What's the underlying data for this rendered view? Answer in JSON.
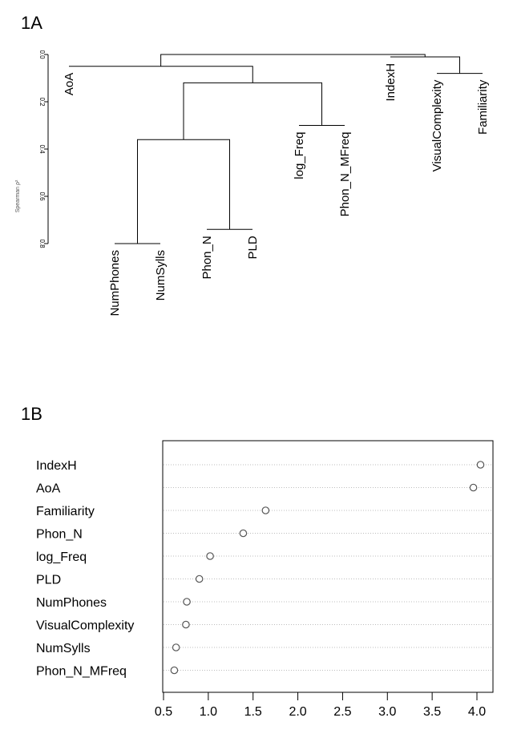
{
  "chart_data": [
    {
      "type": "dendrogram",
      "panel_label": "1A",
      "ylabel": "Spearman ρ²",
      "ylim": [
        0,
        0.8
      ],
      "yticks": [
        "0.0",
        "0.2",
        "0.4",
        "0.6",
        "0.8"
      ],
      "leaves": [
        {
          "label": "AoA",
          "height": 0.05
        },
        {
          "label": "NumPhones",
          "height": 0.8
        },
        {
          "label": "NumSylls",
          "height": 0.8
        },
        {
          "label": "Phon_N",
          "height": 0.74
        },
        {
          "label": "PLD",
          "height": 0.74
        },
        {
          "label": "log_Freq",
          "height": 0.3
        },
        {
          "label": "Phon_N_MFreq",
          "height": 0.3
        },
        {
          "label": "IndexH",
          "height": 0.01
        },
        {
          "label": "VisualComplexity",
          "height": 0.08
        },
        {
          "label": "Familiarity",
          "height": 0.08
        }
      ],
      "merges": [
        {
          "left": "NumPhones",
          "right": "NumSylls",
          "height": 0.8
        },
        {
          "left": "Phon_N",
          "right": "PLD",
          "height": 0.74
        },
        {
          "left": "{NumPhones,NumSylls}",
          "right": "{Phon_N,PLD}",
          "height": 0.36
        },
        {
          "left": "log_Freq",
          "right": "Phon_N_MFreq",
          "height": 0.3
        },
        {
          "left": "{NumPhones,NumSylls,Phon_N,PLD}",
          "right": "{log_Freq,Phon_N_MFreq}",
          "height": 0.12
        },
        {
          "left": "AoA",
          "right": "{NumPhones,...,Phon_N_MFreq}",
          "height": 0.05
        },
        {
          "left": "VisualComplexity",
          "right": "Familiarity",
          "height": 0.08
        },
        {
          "left": "IndexH",
          "right": "{VisualComplexity,Familiarity}",
          "height": 0.01
        },
        {
          "left": "{AoA,...}",
          "right": "{IndexH,...}",
          "height": 0.0
        }
      ]
    },
    {
      "type": "dotchart",
      "panel_label": "1B",
      "categories": [
        "IndexH",
        "AoA",
        "Familiarity",
        "Phon_N",
        "log_Freq",
        "PLD",
        "NumPhones",
        "VisualComplexity",
        "NumSylls",
        "Phon_N_MFreq"
      ],
      "values": [
        4.04,
        3.96,
        1.64,
        1.39,
        1.02,
        0.9,
        0.76,
        0.75,
        0.64,
        0.62
      ],
      "xlim": [
        0.5,
        4.0
      ],
      "xticks": [
        "0.5",
        "1.0",
        "1.5",
        "2.0",
        "2.5",
        "3.0",
        "3.5",
        "4.0"
      ]
    }
  ]
}
